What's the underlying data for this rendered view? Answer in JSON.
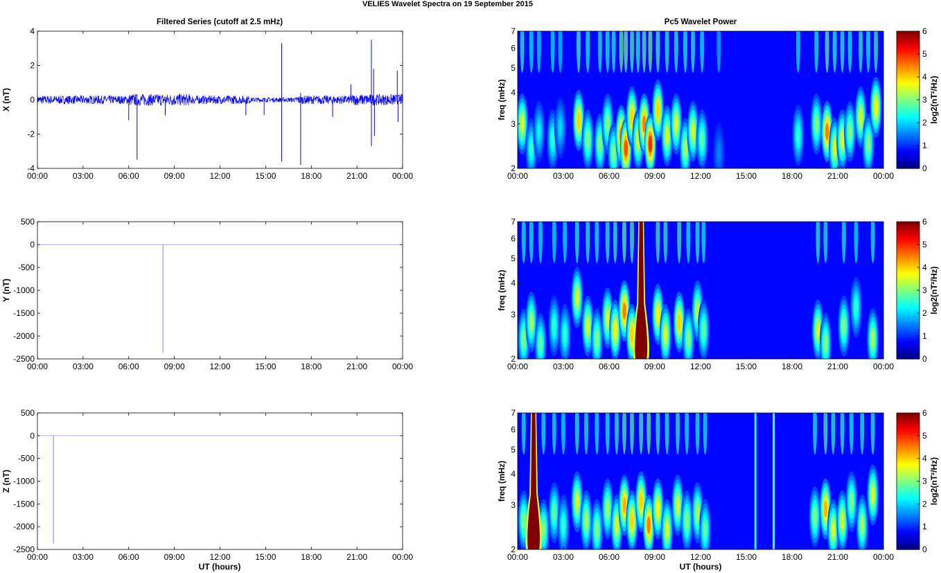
{
  "figure": {
    "suptitle": "VELIES Wavelet Spectra on 19 September 2015",
    "left_title": "Filtered Series (cutoff at 2.5 mHz)",
    "right_title": "Pc5 Wavelet Power",
    "xlabel": "UT (hours)",
    "x_ticks": [
      "00:00",
      "03:00",
      "06:00",
      "09:00",
      "12:00",
      "15:00",
      "18:00",
      "21:00",
      "00:00"
    ],
    "freq_label": "freq (mHz)",
    "freq_ticks": [
      "2",
      "3",
      "4",
      "5",
      "6",
      "7"
    ],
    "colorbar_label": "log2(nT²/Hz)",
    "colorbar_ticks": [
      "0",
      "1",
      "2",
      "3",
      "4",
      "5",
      "6"
    ],
    "colormap": "jet"
  },
  "chart_data": [
    {
      "type": "line",
      "component": "X",
      "ylabel": "X (nT)",
      "xlim_hours": [
        0,
        24
      ],
      "ylim": [
        -4,
        4
      ],
      "y_ticks": [
        "-4",
        "-2",
        "0",
        "2",
        "4"
      ],
      "color": "#0000ff",
      "background_amplitude": 0.25,
      "spikes": [
        {
          "t": 6.0,
          "v": -1.2
        },
        {
          "t": 6.55,
          "v": -3.5
        },
        {
          "t": 8.4,
          "v": -0.9
        },
        {
          "t": 13.7,
          "v": -0.9
        },
        {
          "t": 14.9,
          "v": -0.9
        },
        {
          "t": 16.05,
          "v": 3.3
        },
        {
          "t": 16.05,
          "v": -3.6
        },
        {
          "t": 17.3,
          "v": -3.8
        },
        {
          "t": 17.3,
          "v": 0.4
        },
        {
          "t": 19.4,
          "v": -1.0
        },
        {
          "t": 20.6,
          "v": 0.9
        },
        {
          "t": 21.95,
          "v": 3.5
        },
        {
          "t": 21.95,
          "v": -2.7
        },
        {
          "t": 22.1,
          "v": 1.8
        },
        {
          "t": 22.15,
          "v": -2.1
        },
        {
          "t": 23.65,
          "v": 1.7
        },
        {
          "t": 23.7,
          "v": -1.3
        }
      ]
    },
    {
      "type": "line",
      "component": "Y",
      "ylabel": "Y (nT)",
      "xlim_hours": [
        0,
        24
      ],
      "ylim": [
        -2500,
        500
      ],
      "y_ticks": [
        "-2500",
        "-2000",
        "-1500",
        "-1000",
        "-500",
        "0",
        "500"
      ],
      "color": "#8080ff",
      "baseline": 0,
      "spikes": [
        {
          "t": 8.25,
          "v": -2370
        }
      ]
    },
    {
      "type": "line",
      "component": "Z",
      "ylabel": "Z (nT)",
      "xlim_hours": [
        0,
        24
      ],
      "ylim": [
        -2500,
        500
      ],
      "y_ticks": [
        "-2500",
        "-2000",
        "-1500",
        "-1000",
        "-500",
        "0",
        "500"
      ],
      "color": "#8080ff",
      "baseline": 0,
      "spikes": [
        {
          "t": 1.05,
          "v": -2370
        }
      ]
    },
    {
      "type": "heatmap",
      "title": "Pc5 Wavelet Power",
      "component": "X",
      "xlim_hours": [
        0,
        24
      ],
      "ylim_mhz": [
        2,
        7
      ],
      "clim": [
        0,
        6
      ],
      "blobs": [
        {
          "t": 0.3,
          "f": 3.0,
          "p": 3.5
        },
        {
          "t": 0.9,
          "f": 2.4,
          "p": 2.5
        },
        {
          "t": 1.4,
          "f": 2.8,
          "p": 2.2
        },
        {
          "t": 2.3,
          "f": 2.6,
          "p": 2.5
        },
        {
          "t": 2.8,
          "f": 2.9,
          "p": 2.0
        },
        {
          "t": 4.0,
          "f": 3.1,
          "p": 4.0
        },
        {
          "t": 4.6,
          "f": 2.6,
          "p": 3.0
        },
        {
          "t": 5.4,
          "f": 2.5,
          "p": 3.0
        },
        {
          "t": 5.9,
          "f": 3.0,
          "p": 3.0
        },
        {
          "t": 6.3,
          "f": 2.3,
          "p": 3.0
        },
        {
          "t": 6.8,
          "f": 2.7,
          "p": 4.5
        },
        {
          "t": 7.1,
          "f": 2.4,
          "p": 4.8
        },
        {
          "t": 7.5,
          "f": 3.2,
          "p": 4.0
        },
        {
          "t": 7.9,
          "f": 2.6,
          "p": 3.5
        },
        {
          "t": 8.3,
          "f": 3.0,
          "p": 4.5
        },
        {
          "t": 8.7,
          "f": 2.5,
          "p": 5.0
        },
        {
          "t": 9.2,
          "f": 3.4,
          "p": 4.0
        },
        {
          "t": 9.8,
          "f": 2.7,
          "p": 3.5
        },
        {
          "t": 10.4,
          "f": 3.0,
          "p": 3.5
        },
        {
          "t": 11.0,
          "f": 2.4,
          "p": 3.2
        },
        {
          "t": 11.5,
          "f": 2.8,
          "p": 3.5
        },
        {
          "t": 12.1,
          "f": 2.6,
          "p": 2.8
        },
        {
          "t": 13.2,
          "f": 2.3,
          "p": 1.5
        },
        {
          "t": 18.4,
          "f": 2.7,
          "p": 2.5
        },
        {
          "t": 19.6,
          "f": 3.0,
          "p": 3.0
        },
        {
          "t": 20.3,
          "f": 2.8,
          "p": 4.5
        },
        {
          "t": 20.8,
          "f": 2.4,
          "p": 3.5
        },
        {
          "t": 21.3,
          "f": 2.6,
          "p": 3.5
        },
        {
          "t": 21.8,
          "f": 2.8,
          "p": 3.0
        },
        {
          "t": 22.5,
          "f": 3.2,
          "p": 3.5
        },
        {
          "t": 23.0,
          "f": 2.5,
          "p": 3.0
        },
        {
          "t": 23.5,
          "f": 3.5,
          "p": 3.8
        }
      ]
    },
    {
      "type": "heatmap",
      "title": "",
      "component": "Y",
      "xlim_hours": [
        0,
        24
      ],
      "ylim_mhz": [
        2,
        7
      ],
      "clim": [
        0,
        6
      ],
      "blobs": [
        {
          "t": 0.4,
          "f": 2.4,
          "p": 3.0
        },
        {
          "t": 0.9,
          "f": 2.8,
          "p": 3.2
        },
        {
          "t": 1.5,
          "f": 2.3,
          "p": 2.8
        },
        {
          "t": 2.4,
          "f": 2.7,
          "p": 2.5
        },
        {
          "t": 3.1,
          "f": 2.5,
          "p": 2.5
        },
        {
          "t": 3.9,
          "f": 3.5,
          "p": 3.5
        },
        {
          "t": 4.6,
          "f": 2.7,
          "p": 3.5
        },
        {
          "t": 5.2,
          "f": 2.4,
          "p": 3.0
        },
        {
          "t": 5.9,
          "f": 2.9,
          "p": 3.5
        },
        {
          "t": 6.4,
          "f": 2.6,
          "p": 3.8
        },
        {
          "t": 7.0,
          "f": 3.1,
          "p": 4.5
        },
        {
          "t": 7.5,
          "f": 2.5,
          "p": 4.0
        },
        {
          "t": 9.2,
          "f": 3.0,
          "p": 3.8
        },
        {
          "t": 9.7,
          "f": 2.5,
          "p": 3.5
        },
        {
          "t": 10.6,
          "f": 2.8,
          "p": 4.0
        },
        {
          "t": 11.2,
          "f": 2.4,
          "p": 3.0
        },
        {
          "t": 11.8,
          "f": 3.1,
          "p": 3.3
        },
        {
          "t": 12.2,
          "f": 2.6,
          "p": 2.8
        },
        {
          "t": 19.7,
          "f": 2.6,
          "p": 3.5
        },
        {
          "t": 20.2,
          "f": 2.3,
          "p": 3.0
        },
        {
          "t": 21.4,
          "f": 2.7,
          "p": 3.0
        },
        {
          "t": 22.2,
          "f": 3.2,
          "p": 2.5
        },
        {
          "t": 23.3,
          "f": 2.4,
          "p": 3.2
        }
      ],
      "saturated_columns": [
        {
          "t": 8.1,
          "f_max": 7
        }
      ]
    },
    {
      "type": "heatmap",
      "title": "",
      "component": "Z",
      "xlim_hours": [
        0,
        24
      ],
      "ylim_mhz": [
        2,
        7
      ],
      "clim": [
        0,
        6
      ],
      "blobs": [
        {
          "t": 0.4,
          "f": 2.6,
          "p": 3.0
        },
        {
          "t": 1.7,
          "f": 2.4,
          "p": 3.0
        },
        {
          "t": 2.4,
          "f": 2.8,
          "p": 2.8
        },
        {
          "t": 3.0,
          "f": 2.5,
          "p": 2.5
        },
        {
          "t": 3.9,
          "f": 3.1,
          "p": 3.5
        },
        {
          "t": 4.5,
          "f": 2.6,
          "p": 3.2
        },
        {
          "t": 5.2,
          "f": 2.4,
          "p": 3.0
        },
        {
          "t": 5.9,
          "f": 2.9,
          "p": 3.2
        },
        {
          "t": 6.5,
          "f": 2.5,
          "p": 3.5
        },
        {
          "t": 7.0,
          "f": 3.0,
          "p": 4.2
        },
        {
          "t": 7.5,
          "f": 2.6,
          "p": 4.0
        },
        {
          "t": 8.1,
          "f": 3.1,
          "p": 4.0
        },
        {
          "t": 8.6,
          "f": 2.5,
          "p": 4.5
        },
        {
          "t": 9.2,
          "f": 2.9,
          "p": 3.8
        },
        {
          "t": 9.8,
          "f": 2.4,
          "p": 3.5
        },
        {
          "t": 10.5,
          "f": 3.0,
          "p": 3.5
        },
        {
          "t": 11.1,
          "f": 2.6,
          "p": 3.0
        },
        {
          "t": 11.8,
          "f": 2.8,
          "p": 3.2
        },
        {
          "t": 12.3,
          "f": 2.4,
          "p": 2.8
        },
        {
          "t": 19.5,
          "f": 2.7,
          "p": 3.0
        },
        {
          "t": 20.2,
          "f": 2.9,
          "p": 4.2
        },
        {
          "t": 20.7,
          "f": 2.4,
          "p": 3.5
        },
        {
          "t": 21.3,
          "f": 2.6,
          "p": 3.5
        },
        {
          "t": 21.9,
          "f": 3.1,
          "p": 3.0
        },
        {
          "t": 22.6,
          "f": 2.5,
          "p": 3.2
        },
        {
          "t": 23.3,
          "f": 3.3,
          "p": 3.5
        }
      ],
      "saturated_columns": [
        {
          "t": 1.05,
          "f_max": 7
        }
      ],
      "streaks": [
        {
          "t": 15.6,
          "p": 2.5
        },
        {
          "t": 16.8,
          "p": 2.8
        }
      ]
    }
  ]
}
